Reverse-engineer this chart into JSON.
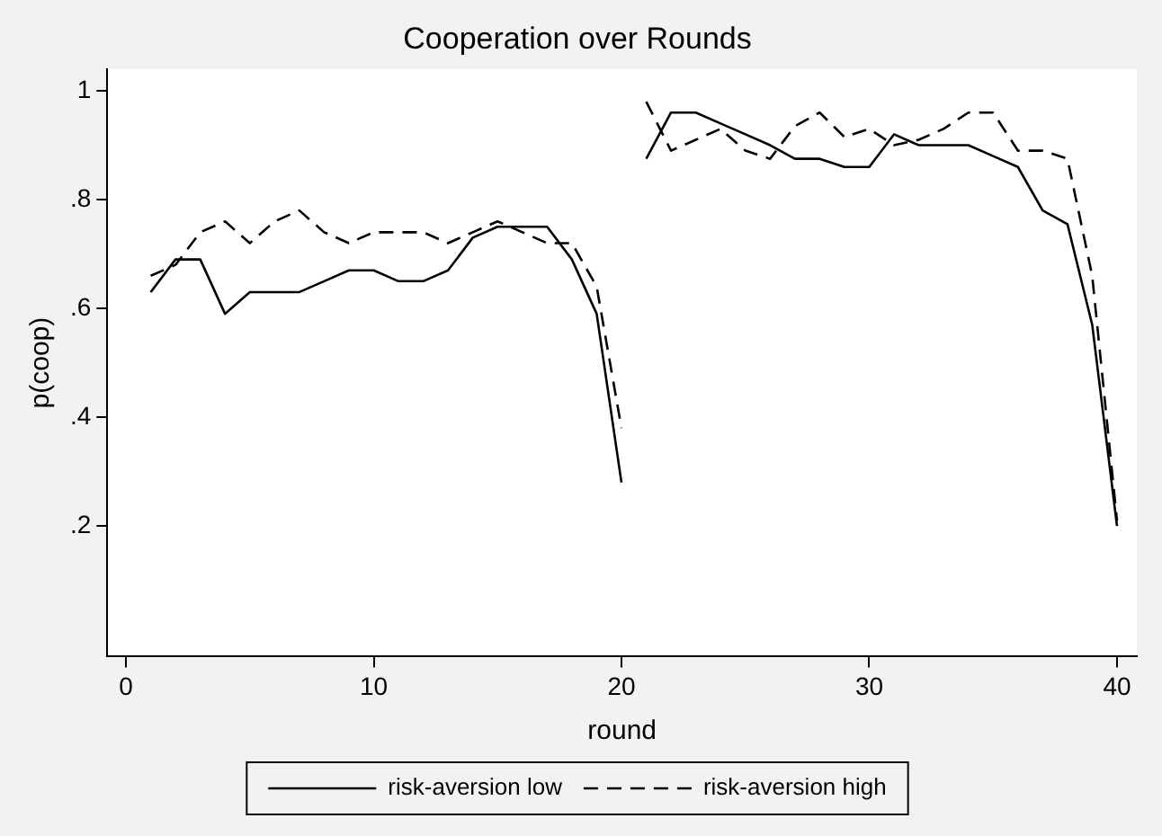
{
  "chart_data": {
    "type": "line",
    "title": "Cooperation over Rounds",
    "xlabel": "round",
    "ylabel": "p(coop)",
    "x": [
      1,
      2,
      3,
      4,
      5,
      6,
      7,
      8,
      9,
      10,
      11,
      12,
      13,
      14,
      15,
      16,
      17,
      18,
      19,
      20,
      20.5,
      21,
      22,
      23,
      24,
      25,
      26,
      27,
      28,
      29,
      30,
      31,
      32,
      33,
      34,
      35,
      36,
      37,
      38,
      39,
      40
    ],
    "series": [
      {
        "name": "risk-aversion low",
        "color": "#000000",
        "line_style": "solid",
        "values": [
          0.63,
          0.69,
          0.69,
          0.59,
          0.63,
          0.63,
          0.63,
          0.65,
          0.67,
          0.67,
          0.65,
          0.65,
          0.67,
          0.73,
          0.75,
          0.75,
          0.75,
          0.69,
          0.59,
          0.28,
          null,
          0.875,
          0.96,
          0.96,
          0.94,
          0.92,
          0.9,
          0.875,
          0.875,
          0.86,
          0.86,
          0.92,
          0.9,
          0.9,
          0.9,
          0.88,
          0.86,
          0.78,
          0.755,
          0.57,
          0.2
        ]
      },
      {
        "name": "risk-aversion high",
        "color": "#000000",
        "line_style": "dashed",
        "values": [
          0.66,
          0.68,
          0.74,
          0.76,
          0.72,
          0.76,
          0.78,
          0.74,
          0.72,
          0.74,
          0.74,
          0.74,
          0.72,
          0.74,
          0.76,
          0.74,
          0.72,
          0.72,
          0.64,
          0.38,
          null,
          0.98,
          0.89,
          0.91,
          0.93,
          0.89,
          0.875,
          0.935,
          0.96,
          0.915,
          0.93,
          0.9,
          0.91,
          0.93,
          0.96,
          0.96,
          0.89,
          0.89,
          0.875,
          0.66,
          0.21
        ]
      }
    ],
    "xlim": [
      -0.75,
      40.8
    ],
    "xticks": [
      0,
      10,
      20,
      30,
      40
    ],
    "ylim": [
      -0.04,
      1.04
    ],
    "yticks": [
      {
        "value": 0.2,
        "label": ".2"
      },
      {
        "value": 0.4,
        "label": ".4"
      },
      {
        "value": 0.6,
        "label": ".6"
      },
      {
        "value": 0.8,
        "label": ".8"
      },
      1
    ],
    "grid": false,
    "legend": "bottom",
    "marker": "none"
  }
}
